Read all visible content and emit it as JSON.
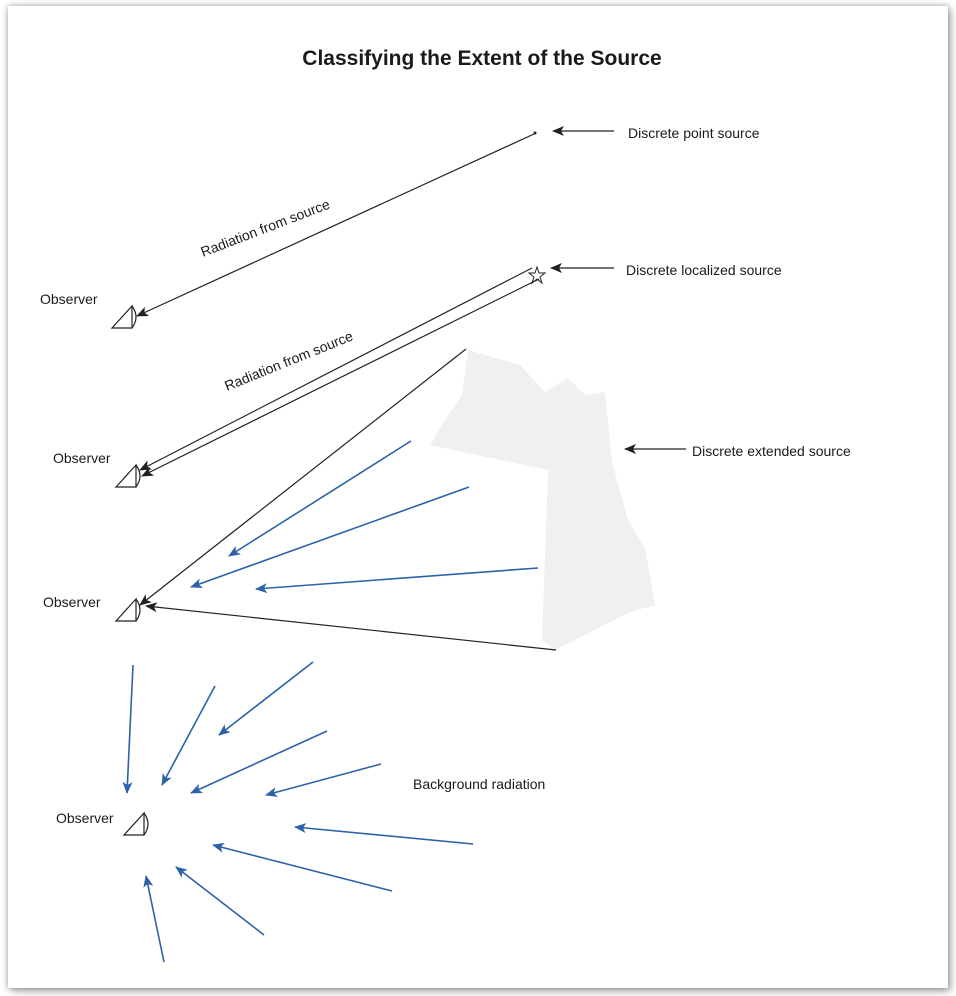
{
  "title": "Classifying the Extent of the Source",
  "labels": {
    "point_source": "Discrete point source",
    "localized_source": "Discrete localized  source",
    "extended_source": "Discrete extended  source",
    "background": "Background radiation",
    "radiation_1": "Radiation from source",
    "radiation_2": "Radiation from source",
    "observer_1": "Observer",
    "observer_2": "Observer",
    "observer_3": "Observer",
    "observer_4": "Observer"
  },
  "colors": {
    "arrow_dark": "#222222",
    "arrow_blue": "#2b62a8",
    "extended_source_fill": "#f0f0f0"
  }
}
